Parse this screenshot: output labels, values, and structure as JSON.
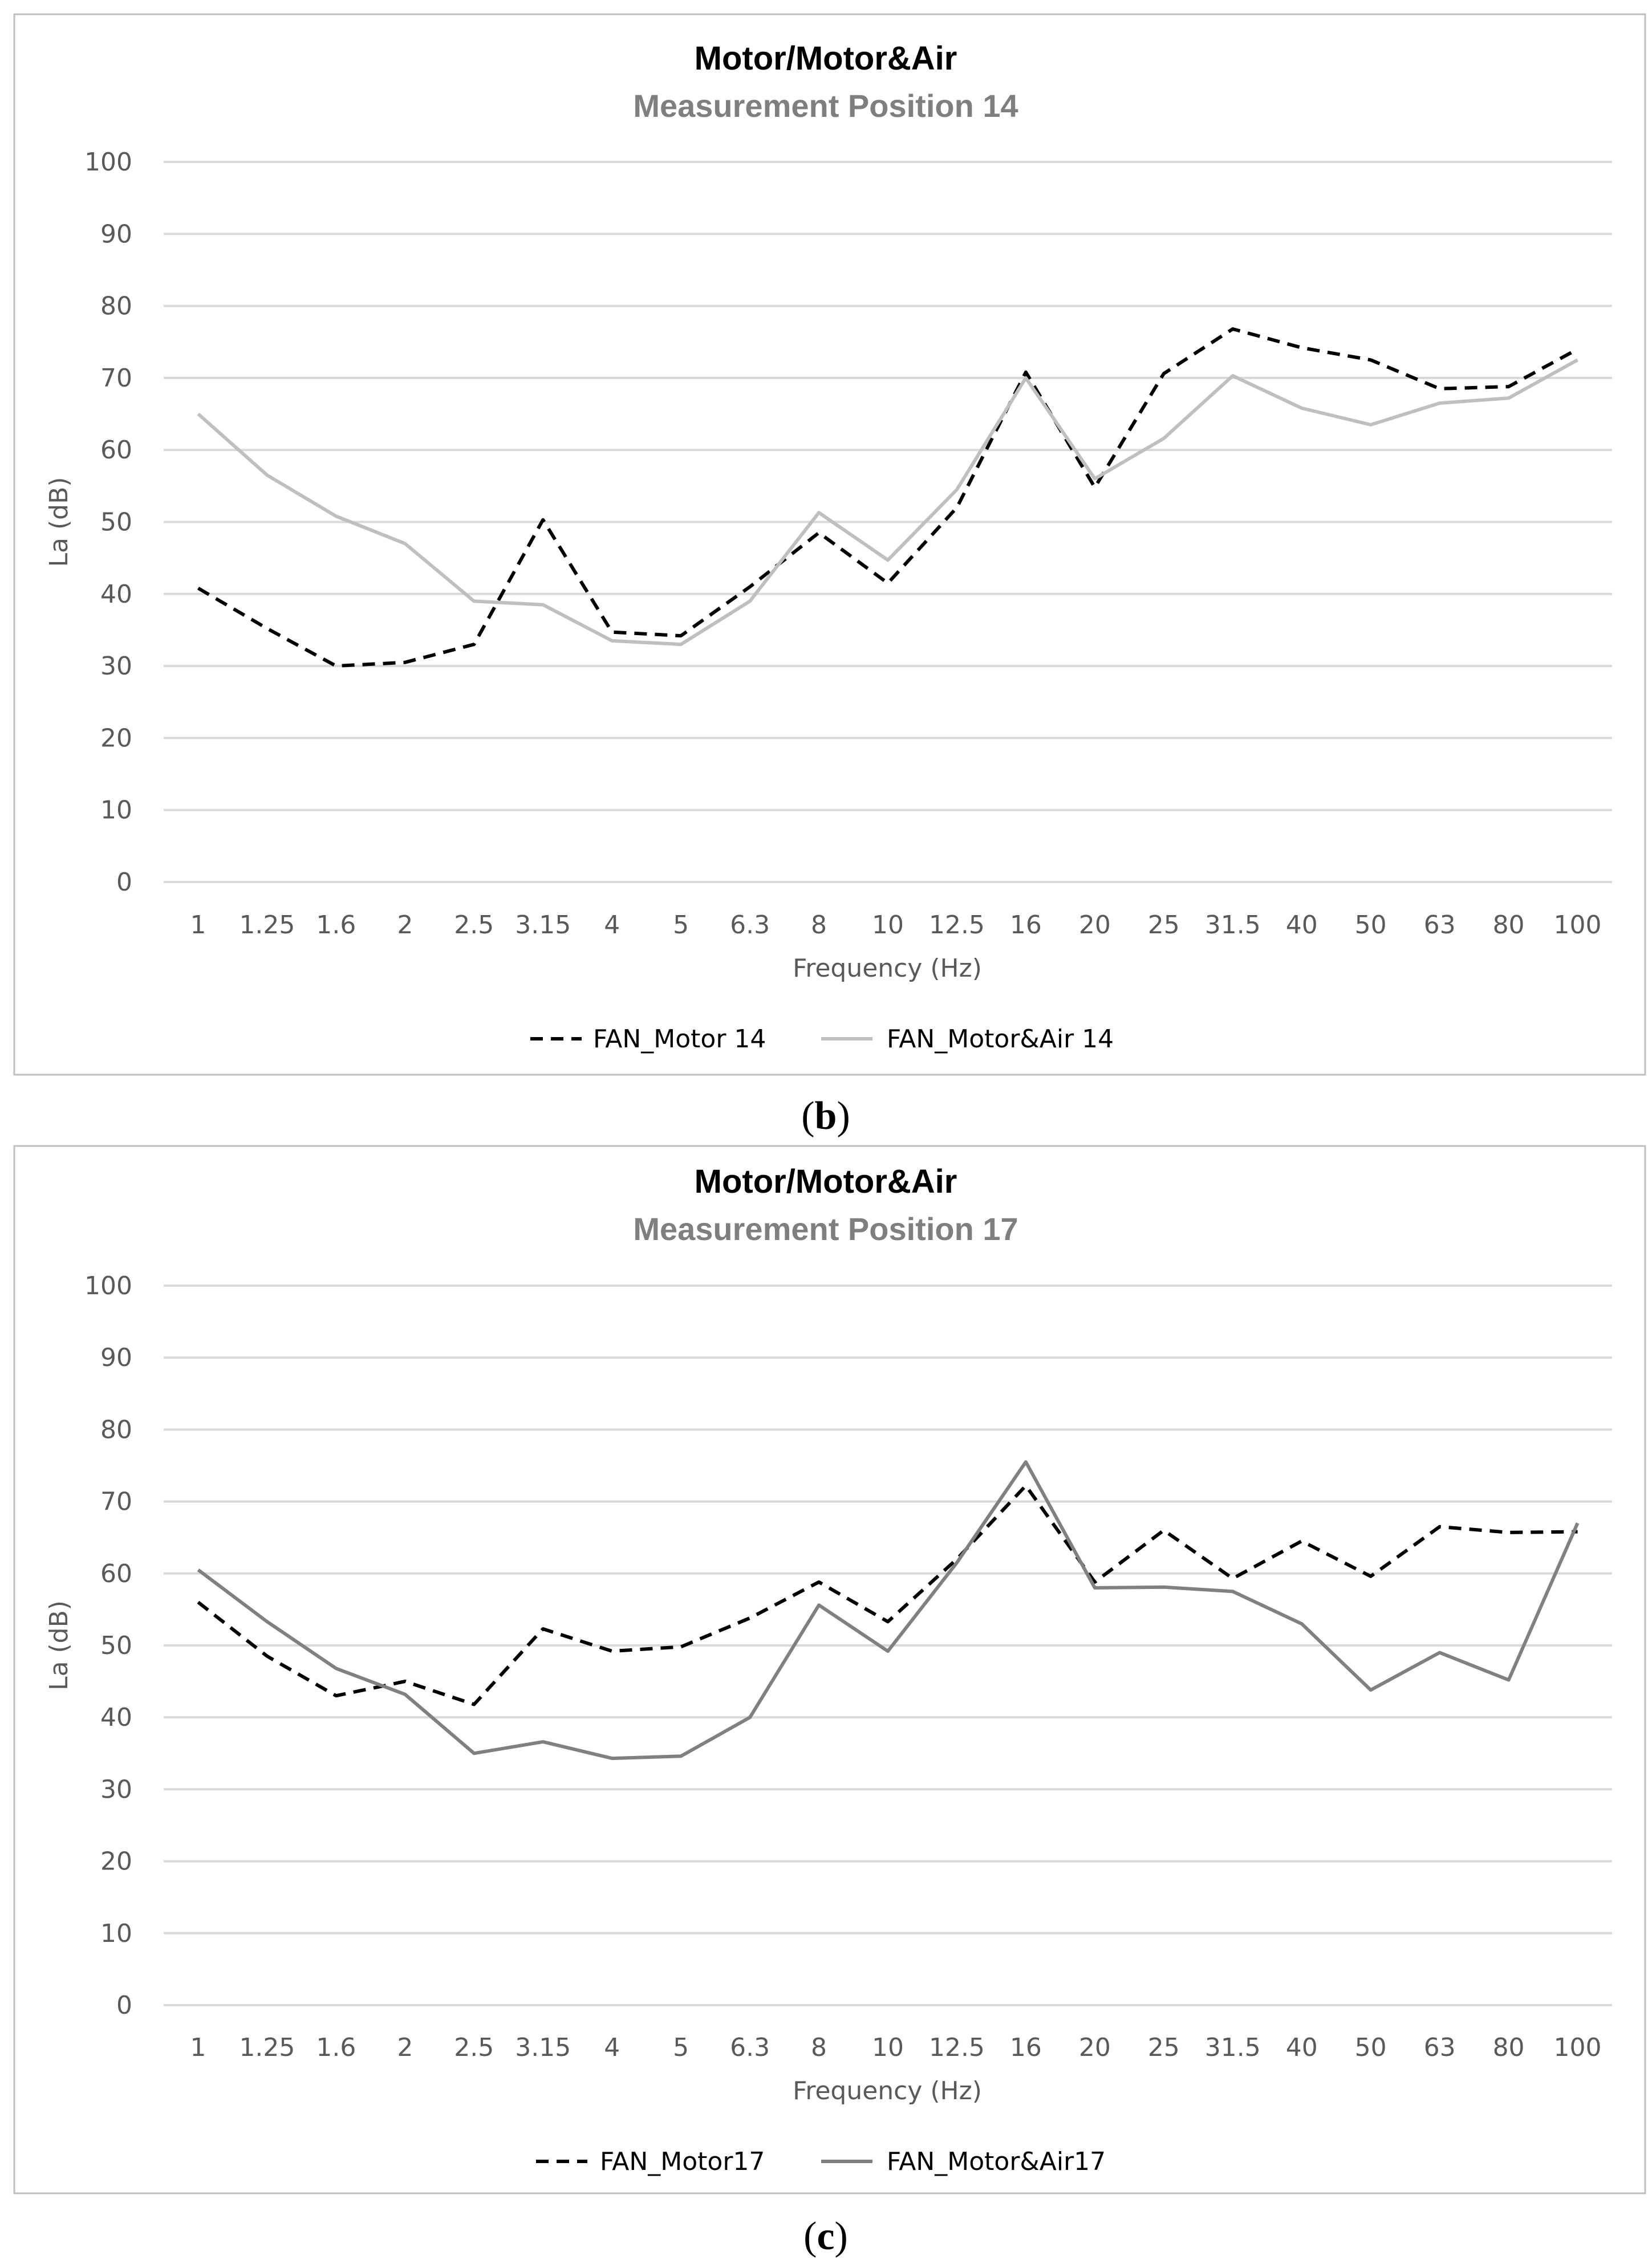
{
  "chart_data": [
    {
      "type": "line",
      "title": "Motor/Motor&Air",
      "subtitle": "Measurement Position 14",
      "xlabel": "Frequency (Hz)",
      "ylabel": "La  (dB)",
      "panel_label": "b",
      "categories": [
        "1",
        "1.25",
        "1.6",
        "2",
        "2.5",
        "3.15",
        "4",
        "5",
        "6.3",
        "8",
        "10",
        "12.5",
        "16",
        "20",
        "25",
        "31.5",
        "40",
        "50",
        "63",
        "80",
        "100"
      ],
      "yticks": [
        "0",
        "10",
        "20",
        "30",
        "40",
        "50",
        "60",
        "70",
        "80",
        "90",
        "100"
      ],
      "ylim": [
        0,
        100
      ],
      "grid": true,
      "legend_position": "bottom",
      "series": [
        {
          "name": "FAN_Motor 14",
          "style": "dashed",
          "color": "#000000",
          "values": [
            40.8,
            35.2,
            30.0,
            30.5,
            33.0,
            50.3,
            34.7,
            34.2,
            41.0,
            48.5,
            41.5,
            52.0,
            70.8,
            54.8,
            70.6,
            76.8,
            74.2,
            72.5,
            68.5,
            68.8,
            74.0
          ]
        },
        {
          "name": "FAN_Motor&Air 14",
          "style": "solid",
          "color": "#bfbfbf",
          "values": [
            65.0,
            56.5,
            50.8,
            47.0,
            39.0,
            38.5,
            33.5,
            33.0,
            39.0,
            51.3,
            44.7,
            54.5,
            70.0,
            56.0,
            61.6,
            70.3,
            65.8,
            63.5,
            66.5,
            67.2,
            72.5
          ]
        }
      ]
    },
    {
      "type": "line",
      "title": "Motor/Motor&Air",
      "subtitle": "Measurement Position 17",
      "xlabel": "Frequency (Hz)",
      "ylabel": "La  (dB)",
      "panel_label": "c",
      "categories": [
        "1",
        "1.25",
        "1.6",
        "2",
        "2.5",
        "3.15",
        "4",
        "5",
        "6.3",
        "8",
        "10",
        "12.5",
        "16",
        "20",
        "25",
        "31.5",
        "40",
        "50",
        "63",
        "80",
        "100"
      ],
      "yticks": [
        "0",
        "10",
        "20",
        "30",
        "40",
        "50",
        "60",
        "70",
        "80",
        "90",
        "100"
      ],
      "ylim": [
        0,
        100
      ],
      "grid": true,
      "legend_position": "bottom",
      "series": [
        {
          "name": "FAN_Motor17",
          "style": "dashed",
          "color": "#000000",
          "values": [
            56.0,
            48.5,
            43.0,
            45.0,
            41.8,
            52.3,
            49.2,
            49.8,
            53.8,
            58.8,
            53.3,
            62.0,
            72.2,
            58.8,
            66.0,
            59.3,
            64.5,
            59.6,
            66.5,
            65.7,
            65.8
          ]
        },
        {
          "name": "FAN_Motor&Air17",
          "style": "solid",
          "color": "#808080",
          "values": [
            60.5,
            53.3,
            46.8,
            43.2,
            35.0,
            36.6,
            34.3,
            34.6,
            40.0,
            55.6,
            49.2,
            61.5,
            75.5,
            58.0,
            58.1,
            57.5,
            53.0,
            43.8,
            49.0,
            45.2,
            67.0
          ]
        }
      ]
    }
  ]
}
